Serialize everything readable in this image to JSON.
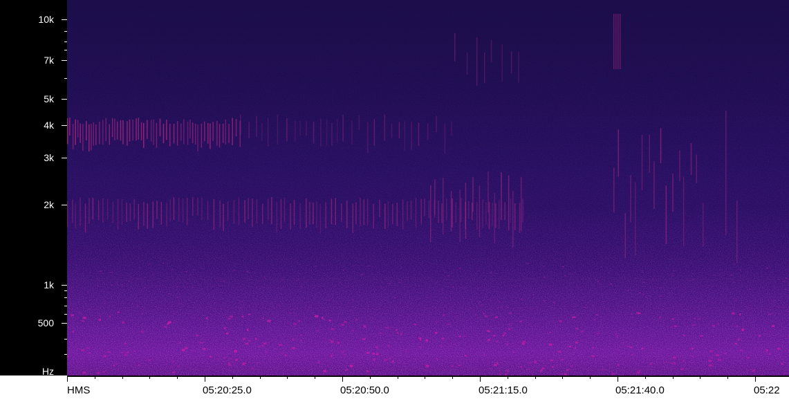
{
  "frequency_axis": {
    "labels": [
      "10k",
      "7k",
      "5k",
      "4k",
      "3k",
      "2k",
      "1k",
      "500",
      "Hz"
    ]
  },
  "time_axis": {
    "unit": "HMS",
    "labels": [
      "05:20:25.0",
      "05:20:50.0",
      "05:21:15.0",
      "05:21:40.0",
      "05:22"
    ]
  },
  "colors": {
    "ruler_background": "#000000",
    "ruler_text": "#ffffff",
    "low_intensity": "#1b0d49",
    "high_intensity": "#d21ca8"
  }
}
